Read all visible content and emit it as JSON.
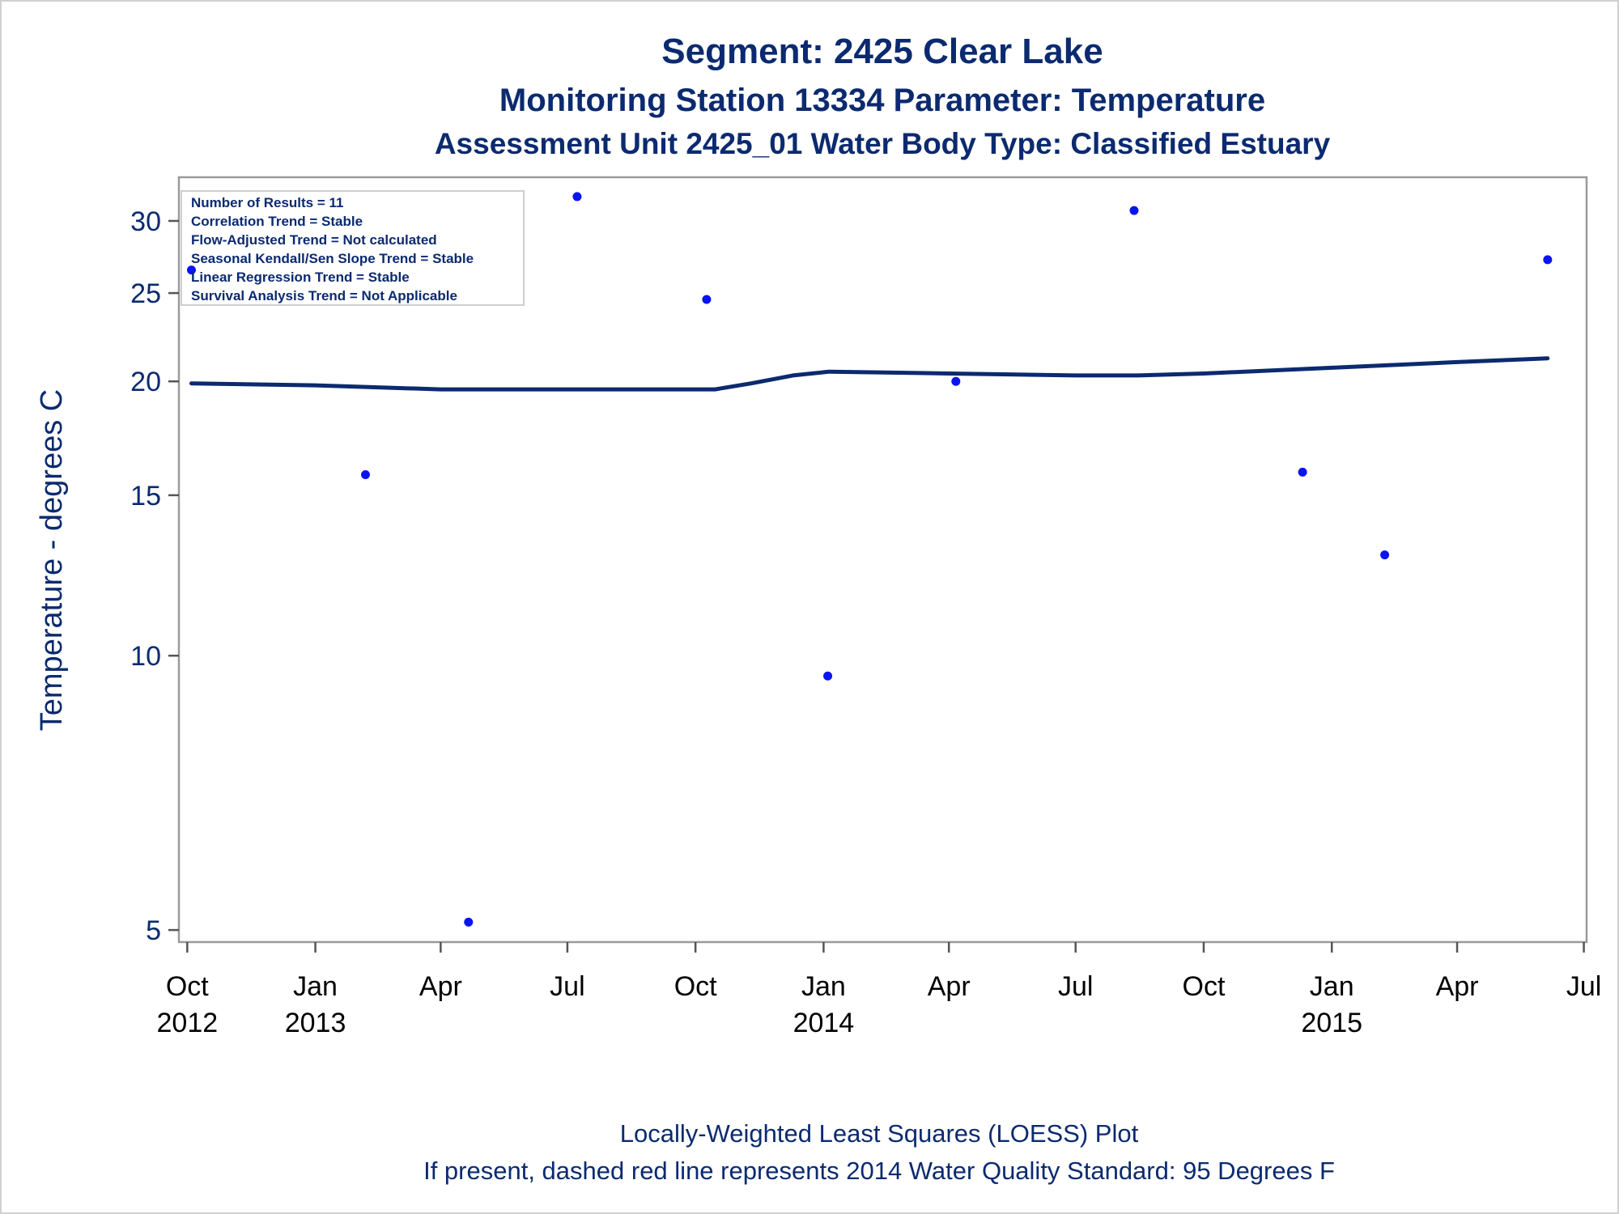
{
  "chart_data": {
    "type": "scatter",
    "title": "Segment: 2425  Clear Lake",
    "subtitle1": "Monitoring Station 13334 Parameter: Temperature",
    "subtitle2": "Assessment Unit 2425_01   Water Body Type: Classified Estuary",
    "ylabel": "Temperature - degrees C",
    "xlabel": "",
    "y_scale": "log",
    "ylim": [
      4.85,
      33.5
    ],
    "xlim": [
      "2012-09-25",
      "2015-07-03"
    ],
    "grid": false,
    "y_ticks": [
      {
        "value": 5,
        "label": "5"
      },
      {
        "value": 10,
        "label": "10"
      },
      {
        "value": 15,
        "label": "15"
      },
      {
        "value": 20,
        "label": "20"
      },
      {
        "value": 25,
        "label": "25"
      },
      {
        "value": 30,
        "label": "30"
      }
    ],
    "x_ticks": [
      {
        "date": "2012-10-01",
        "month": "Oct",
        "year": "2012"
      },
      {
        "date": "2013-01-01",
        "month": "Jan",
        "year": "2013"
      },
      {
        "date": "2013-04-01",
        "month": "Apr",
        "year": ""
      },
      {
        "date": "2013-07-01",
        "month": "Jul",
        "year": ""
      },
      {
        "date": "2013-10-01",
        "month": "Oct",
        "year": ""
      },
      {
        "date": "2014-01-01",
        "month": "Jan",
        "year": "2014"
      },
      {
        "date": "2014-04-01",
        "month": "Apr",
        "year": ""
      },
      {
        "date": "2014-07-01",
        "month": "Jul",
        "year": ""
      },
      {
        "date": "2014-10-01",
        "month": "Oct",
        "year": ""
      },
      {
        "date": "2015-01-01",
        "month": "Jan",
        "year": "2015"
      },
      {
        "date": "2015-04-01",
        "month": "Apr",
        "year": ""
      },
      {
        "date": "2015-07-01",
        "month": "Jul",
        "year": ""
      }
    ],
    "series": [
      {
        "kind": "points",
        "color": "#0a14f0",
        "points": [
          {
            "x": "2012-10-04",
            "y": 26.5
          },
          {
            "x": "2013-02-06",
            "y": 15.8
          },
          {
            "x": "2013-04-21",
            "y": 5.1
          },
          {
            "x": "2013-07-08",
            "y": 31.9
          },
          {
            "x": "2013-10-09",
            "y": 24.6
          },
          {
            "x": "2014-01-04",
            "y": 9.5
          },
          {
            "x": "2014-04-06",
            "y": 20.0
          },
          {
            "x": "2014-08-12",
            "y": 30.8
          },
          {
            "x": "2014-12-11",
            "y": 15.9
          },
          {
            "x": "2015-02-08",
            "y": 12.9
          },
          {
            "x": "2015-06-05",
            "y": 27.2
          }
        ]
      },
      {
        "kind": "loess",
        "color": "#0b2a6f",
        "points": [
          {
            "x": "2012-10-04",
            "y": 19.9
          },
          {
            "x": "2013-01-01",
            "y": 19.8
          },
          {
            "x": "2013-04-01",
            "y": 19.6
          },
          {
            "x": "2013-07-01",
            "y": 19.6
          },
          {
            "x": "2013-09-20",
            "y": 19.6
          },
          {
            "x": "2013-10-15",
            "y": 19.6
          },
          {
            "x": "2013-11-10",
            "y": 19.9
          },
          {
            "x": "2013-12-10",
            "y": 20.3
          },
          {
            "x": "2014-01-05",
            "y": 20.5
          },
          {
            "x": "2014-04-01",
            "y": 20.4
          },
          {
            "x": "2014-07-01",
            "y": 20.3
          },
          {
            "x": "2014-08-15",
            "y": 20.3
          },
          {
            "x": "2014-10-01",
            "y": 20.4
          },
          {
            "x": "2015-01-01",
            "y": 20.7
          },
          {
            "x": "2015-04-01",
            "y": 21.0
          },
          {
            "x": "2015-06-05",
            "y": 21.2
          }
        ]
      }
    ],
    "stats_box": [
      "Number of Results = 11",
      "Correlation Trend = Stable",
      "Flow-Adjusted Trend = Not calculated",
      "Seasonal Kendall/Sen Slope Trend = Stable",
      "Linear Regression Trend = Stable",
      "Survival Analysis Trend = Not Applicable"
    ],
    "stats_box_placement": "top-left",
    "footnotes": [
      "Locally-Weighted Least Squares (LOESS) Plot",
      "If present, dashed red line represents 2014 Water Quality Standard: 95   Degrees F"
    ]
  }
}
